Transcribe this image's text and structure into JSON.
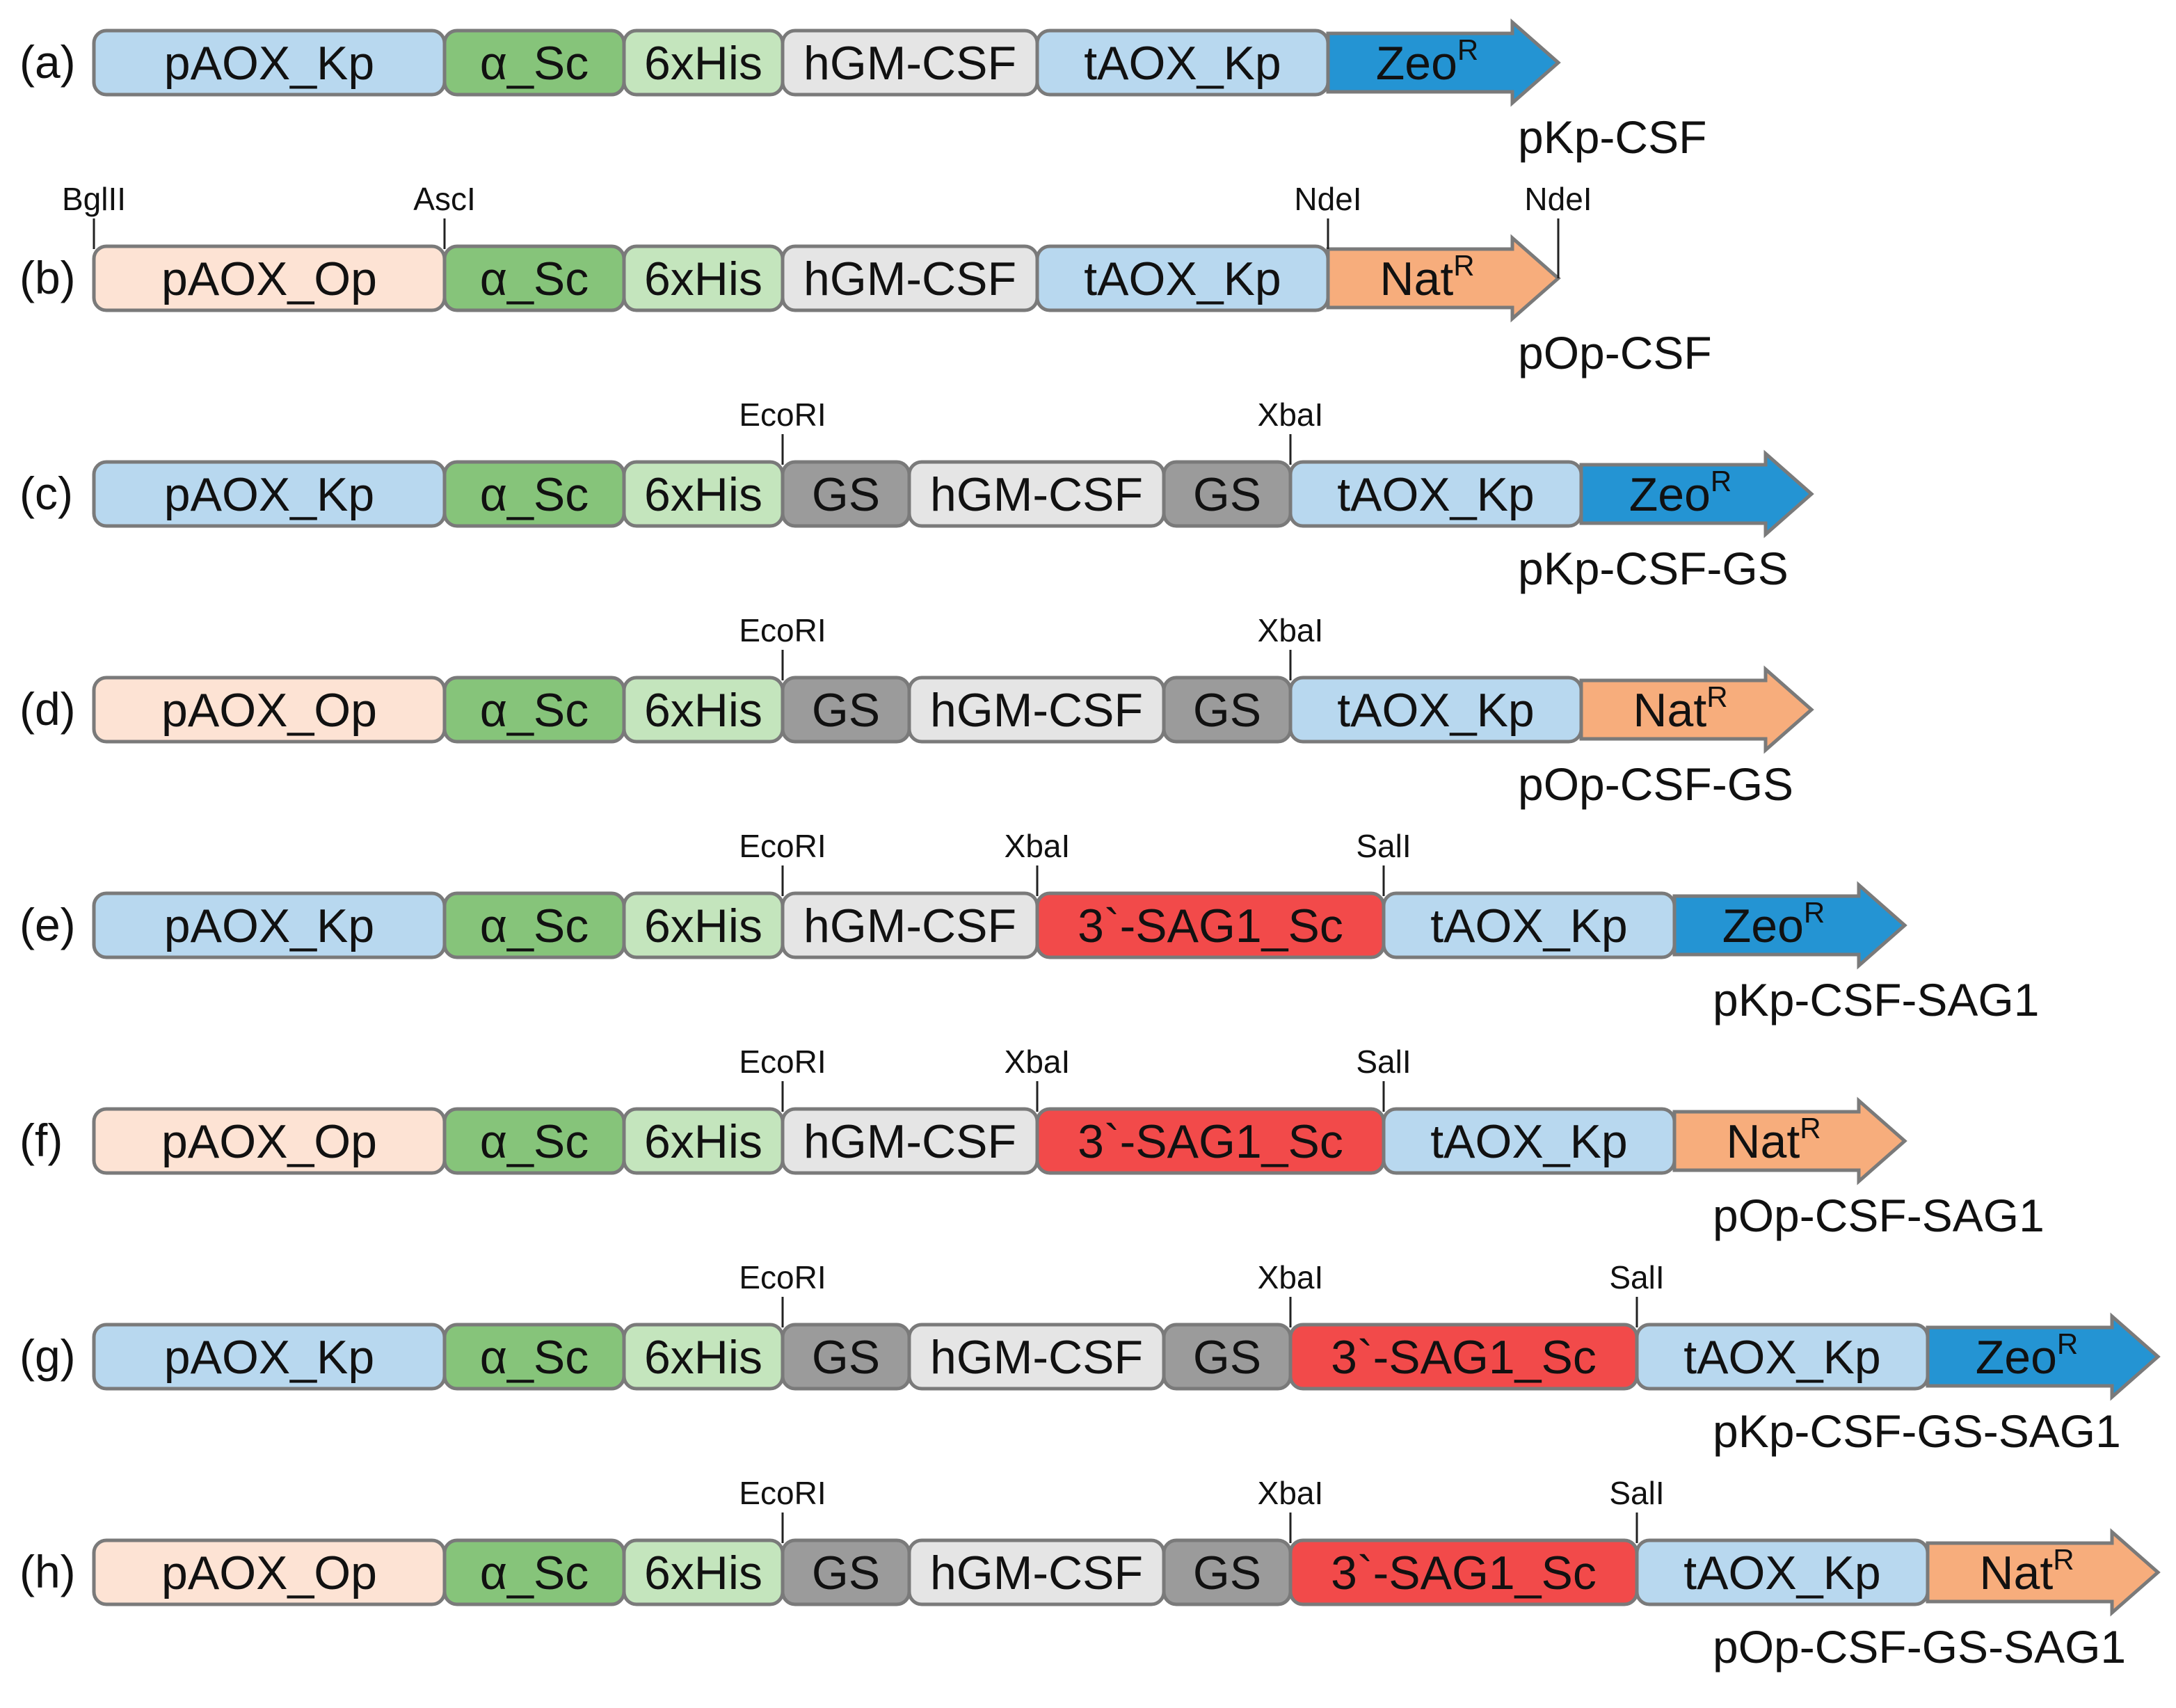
{
  "colors": {
    "pAOX_Kp": "#b8d8ef",
    "pAOX_Op": "#fde3d4",
    "alpha_Sc": "#86c47a",
    "6xHis": "#c4e5bd",
    "hGM-CSF": "#e5e5e5",
    "tAOX_Kp": "#b8d8ef",
    "GS": "#9b9b9b",
    "SAG1": "#f24a4a",
    "Zeo": "#2494d3",
    "Nat": "#f7ad7c",
    "stroke": "#7a7a7a"
  },
  "constructs": [
    {
      "label": "(a)",
      "name": "pKp-CSF",
      "segments": [
        {
          "text": "pAOX_Kp",
          "color": "pAOX_Kp"
        },
        {
          "text": "α_Sc",
          "color": "alpha_Sc"
        },
        {
          "text": "6xHis",
          "color": "6xHis"
        },
        {
          "text": "hGM-CSF",
          "color": "hGM-CSF"
        },
        {
          "text": "tAOX_Kp",
          "color": "tAOX_Kp"
        }
      ],
      "marker": {
        "text": "Zeo",
        "sup": "R",
        "color": "Zeo"
      },
      "sites": []
    },
    {
      "label": "(b)",
      "name": "pOp-CSF",
      "segments": [
        {
          "text": "pAOX_Op",
          "color": "pAOX_Op"
        },
        {
          "text": "α_Sc",
          "color": "alpha_Sc"
        },
        {
          "text": "6xHis",
          "color": "6xHis"
        },
        {
          "text": "hGM-CSF",
          "color": "hGM-CSF"
        },
        {
          "text": "tAOX_Kp",
          "color": "tAOX_Kp"
        }
      ],
      "marker": {
        "text": "Nat",
        "sup": "R",
        "color": "Nat"
      },
      "sites": [
        {
          "text": "BglII",
          "at": "start"
        },
        {
          "text": "AscI",
          "at": 1
        },
        {
          "text": "NdeI",
          "at": 5
        },
        {
          "text": "NdeI",
          "at": "tip"
        }
      ]
    },
    {
      "label": "(c)",
      "name": "pKp-CSF-GS",
      "segments": [
        {
          "text": "pAOX_Kp",
          "color": "pAOX_Kp"
        },
        {
          "text": "α_Sc",
          "color": "alpha_Sc"
        },
        {
          "text": "6xHis",
          "color": "6xHis"
        },
        {
          "text": "GS",
          "color": "GS"
        },
        {
          "text": "hGM-CSF",
          "color": "hGM-CSF"
        },
        {
          "text": "GS",
          "color": "GS"
        },
        {
          "text": "tAOX_Kp",
          "color": "tAOX_Kp"
        }
      ],
      "marker": {
        "text": "Zeo",
        "sup": "R",
        "color": "Zeo"
      },
      "sites": [
        {
          "text": "EcoRI",
          "at": 3
        },
        {
          "text": "XbaI",
          "at": 6
        }
      ]
    },
    {
      "label": "(d)",
      "name": "pOp-CSF-GS",
      "segments": [
        {
          "text": "pAOX_Op",
          "color": "pAOX_Op"
        },
        {
          "text": "α_Sc",
          "color": "alpha_Sc"
        },
        {
          "text": "6xHis",
          "color": "6xHis"
        },
        {
          "text": "GS",
          "color": "GS"
        },
        {
          "text": "hGM-CSF",
          "color": "hGM-CSF"
        },
        {
          "text": "GS",
          "color": "GS"
        },
        {
          "text": "tAOX_Kp",
          "color": "tAOX_Kp"
        }
      ],
      "marker": {
        "text": "Nat",
        "sup": "R",
        "color": "Nat"
      },
      "sites": [
        {
          "text": "EcoRI",
          "at": 3
        },
        {
          "text": "XbaI",
          "at": 6
        }
      ]
    },
    {
      "label": "(e)",
      "name": "pKp-CSF-SAG1",
      "segments": [
        {
          "text": "pAOX_Kp",
          "color": "pAOX_Kp"
        },
        {
          "text": "α_Sc",
          "color": "alpha_Sc"
        },
        {
          "text": "6xHis",
          "color": "6xHis"
        },
        {
          "text": "hGM-CSF",
          "color": "hGM-CSF"
        },
        {
          "text": "3`-SAG1_Sc",
          "color": "SAG1"
        },
        {
          "text": "tAOX_Kp",
          "color": "tAOX_Kp"
        }
      ],
      "marker": {
        "text": "Zeo",
        "sup": "R",
        "color": "Zeo"
      },
      "sites": [
        {
          "text": "EcoRI",
          "at": 3
        },
        {
          "text": "XbaI",
          "at": 4
        },
        {
          "text": "SalI",
          "at": 5
        }
      ]
    },
    {
      "label": "(f)",
      "name": "pOp-CSF-SAG1",
      "segments": [
        {
          "text": "pAOX_Op",
          "color": "pAOX_Op"
        },
        {
          "text": "α_Sc",
          "color": "alpha_Sc"
        },
        {
          "text": "6xHis",
          "color": "6xHis"
        },
        {
          "text": "hGM-CSF",
          "color": "hGM-CSF"
        },
        {
          "text": "3`-SAG1_Sc",
          "color": "SAG1"
        },
        {
          "text": "tAOX_Kp",
          "color": "tAOX_Kp"
        }
      ],
      "marker": {
        "text": "Nat",
        "sup": "R",
        "color": "Nat"
      },
      "sites": [
        {
          "text": "EcoRI",
          "at": 3
        },
        {
          "text": "XbaI",
          "at": 4
        },
        {
          "text": "SalI",
          "at": 5
        }
      ]
    },
    {
      "label": "(g)",
      "name": "pKp-CSF-GS-SAG1",
      "segments": [
        {
          "text": "pAOX_Kp",
          "color": "pAOX_Kp"
        },
        {
          "text": "α_Sc",
          "color": "alpha_Sc"
        },
        {
          "text": "6xHis",
          "color": "6xHis"
        },
        {
          "text": "GS",
          "color": "GS"
        },
        {
          "text": "hGM-CSF",
          "color": "hGM-CSF"
        },
        {
          "text": "GS",
          "color": "GS"
        },
        {
          "text": "3`-SAG1_Sc",
          "color": "SAG1"
        },
        {
          "text": "tAOX_Kp",
          "color": "tAOX_Kp"
        }
      ],
      "marker": {
        "text": "Zeo",
        "sup": "R",
        "color": "Zeo"
      },
      "sites": [
        {
          "text": "EcoRI",
          "at": 3
        },
        {
          "text": "XbaI",
          "at": 6
        },
        {
          "text": "SalI",
          "at": 7
        }
      ]
    },
    {
      "label": "(h)",
      "name": "pOp-CSF-GS-SAG1",
      "segments": [
        {
          "text": "pAOX_Op",
          "color": "pAOX_Op"
        },
        {
          "text": "α_Sc",
          "color": "alpha_Sc"
        },
        {
          "text": "6xHis",
          "color": "6xHis"
        },
        {
          "text": "GS",
          "color": "GS"
        },
        {
          "text": "hGM-CSF",
          "color": "hGM-CSF"
        },
        {
          "text": "GS",
          "color": "GS"
        },
        {
          "text": "3`-SAG1_Sc",
          "color": "SAG1"
        },
        {
          "text": "tAOX_Kp",
          "color": "tAOX_Kp"
        }
      ],
      "marker": {
        "text": "Nat",
        "sup": "R",
        "color": "Nat"
      },
      "sites": [
        {
          "text": "EcoRI",
          "at": 3
        },
        {
          "text": "XbaI",
          "at": 6
        },
        {
          "text": "SalI",
          "at": 7
        }
      ]
    }
  ]
}
